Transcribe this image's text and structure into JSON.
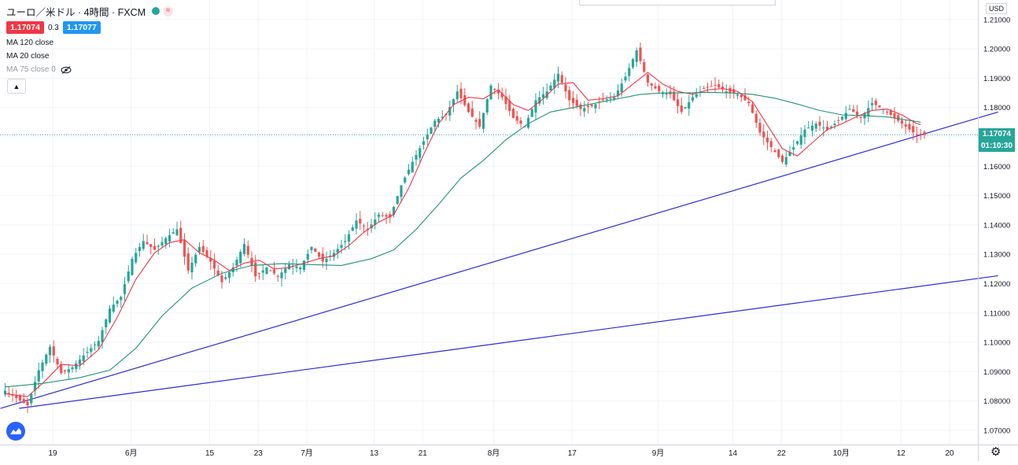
{
  "legend": {
    "title": "ユーロ／米ドル · 4時間 · FXCM",
    "bid": "1.17074",
    "spread": "0.3",
    "ask": "1.17077",
    "ma_lines": [
      "MA 120 close",
      "MA 20 close",
      "MA 75 close 0"
    ]
  },
  "price_scale": {
    "currency": "USD",
    "last_price": "1.17074",
    "countdown": "01:10:30"
  },
  "colors": {
    "bull": "#26a69a",
    "bear": "#ef5350",
    "ma_short": "#f23645",
    "ma_long": "#22927a",
    "trendline": "#2b2bd9",
    "bid_box": "#f23645",
    "ask_box": "#2196f3",
    "countdown_box": "#26a69a"
  },
  "icons": {
    "logo": "tradingview-logo-icon",
    "settings": "gear-icon",
    "hide": "eye-crossed-icon"
  },
  "chart_data": {
    "type": "candlestick",
    "title": "ユーロ／米ドル · 4時間 · FXCM",
    "ylim": [
      1.065,
      1.212
    ],
    "y_ticks": [
      1.07,
      1.08,
      1.09,
      1.1,
      1.11,
      1.12,
      1.13,
      1.14,
      1.15,
      1.16,
      1.17,
      1.18,
      1.19,
      1.2,
      1.21
    ],
    "y_tick_labels": [
      "1.07000",
      "1.08000",
      "1.09000",
      "1.10000",
      "1.11000",
      "1.12000",
      "1.13000",
      "1.14000",
      "1.15000",
      "1.16000",
      "1.17000",
      "1.18000",
      "1.19000",
      "1.20000",
      "1.21000"
    ],
    "x_ticks": [
      {
        "i": 6,
        "label": "19"
      },
      {
        "i": 27,
        "label": "6月"
      },
      {
        "i": 48,
        "label": "15"
      },
      {
        "i": 61,
        "label": "23"
      },
      {
        "i": 74,
        "label": "7月"
      },
      {
        "i": 92,
        "label": "13"
      },
      {
        "i": 105,
        "label": "21"
      },
      {
        "i": 124,
        "label": "8月"
      },
      {
        "i": 145,
        "label": "17"
      },
      {
        "i": 168,
        "label": "9月"
      },
      {
        "i": 188,
        "label": "14"
      },
      {
        "i": 201,
        "label": "22"
      },
      {
        "i": 217,
        "label": "10月"
      },
      {
        "i": 233,
        "label": "12"
      },
      {
        "i": 246,
        "label": "20"
      }
    ],
    "close_path": [
      [
        0,
        1.0835
      ],
      [
        6,
        1.0785
      ],
      [
        9,
        1.0905
      ],
      [
        12,
        1.0985
      ],
      [
        15,
        1.0895
      ],
      [
        18,
        1.0915
      ],
      [
        21,
        1.0955
      ],
      [
        25,
        1.1005
      ],
      [
        28,
        1.1115
      ],
      [
        31,
        1.1155
      ],
      [
        34,
        1.1285
      ],
      [
        37,
        1.1345
      ],
      [
        40,
        1.1315
      ],
      [
        43,
        1.1355
      ],
      [
        46,
        1.1385
      ],
      [
        49,
        1.1245
      ],
      [
        52,
        1.1325
      ],
      [
        55,
        1.1275
      ],
      [
        58,
        1.1205
      ],
      [
        61,
        1.1255
      ],
      [
        64,
        1.1335
      ],
      [
        67,
        1.1225
      ],
      [
        70,
        1.1255
      ],
      [
        73,
        1.1225
      ],
      [
        76,
        1.1265
      ],
      [
        79,
        1.1255
      ],
      [
        82,
        1.1325
      ],
      [
        85,
        1.1275
      ],
      [
        88,
        1.1305
      ],
      [
        91,
        1.1345
      ],
      [
        94,
        1.1415
      ],
      [
        97,
        1.1385
      ],
      [
        100,
        1.1435
      ],
      [
        103,
        1.1425
      ],
      [
        106,
        1.1535
      ],
      [
        109,
        1.1615
      ],
      [
        112,
        1.1685
      ],
      [
        115,
        1.1755
      ],
      [
        118,
        1.1775
      ],
      [
        121,
        1.1855
      ],
      [
        124,
        1.1785
      ],
      [
        127,
        1.1735
      ],
      [
        130,
        1.1875
      ],
      [
        133,
        1.1835
      ],
      [
        136,
        1.1765
      ],
      [
        139,
        1.1735
      ],
      [
        142,
        1.1825
      ],
      [
        145,
        1.1855
      ],
      [
        148,
        1.1915
      ],
      [
        151,
        1.1825
      ],
      [
        154,
        1.1795
      ],
      [
        157,
        1.1805
      ],
      [
        160,
        1.1825
      ],
      [
        163,
        1.1835
      ],
      [
        166,
        1.1905
      ],
      [
        169,
        1.1995
      ],
      [
        172,
        1.1885
      ],
      [
        175,
        1.1855
      ],
      [
        178,
        1.1845
      ],
      [
        181,
        1.1785
      ],
      [
        184,
        1.1835
      ],
      [
        187,
        1.1865
      ],
      [
        190,
        1.1875
      ],
      [
        193,
        1.1855
      ],
      [
        196,
        1.1845
      ],
      [
        199,
        1.1815
      ],
      [
        202,
        1.1715
      ],
      [
        205,
        1.1665
      ],
      [
        208,
        1.1615
      ],
      [
        211,
        1.1665
      ],
      [
        214,
        1.1725
      ],
      [
        217,
        1.1745
      ],
      [
        220,
        1.1725
      ],
      [
        223,
        1.1755
      ],
      [
        226,
        1.1795
      ],
      [
        229,
        1.1765
      ],
      [
        232,
        1.1815
      ],
      [
        235,
        1.1795
      ],
      [
        238,
        1.1765
      ],
      [
        241,
        1.1735
      ],
      [
        244,
        1.1705
      ],
      [
        245,
        1.17074
      ]
    ],
    "series": [
      {
        "name": "MA 20 close",
        "color": "#f23645",
        "points": [
          [
            0,
            1.0825
          ],
          [
            6,
            1.0815
          ],
          [
            10,
            1.086
          ],
          [
            15,
            1.0925
          ],
          [
            20,
            1.092
          ],
          [
            25,
            1.0975
          ],
          [
            30,
            1.1085
          ],
          [
            35,
            1.1215
          ],
          [
            40,
            1.1305
          ],
          [
            44,
            1.134
          ],
          [
            48,
            1.135
          ],
          [
            52,
            1.1305
          ],
          [
            56,
            1.128
          ],
          [
            60,
            1.1245
          ],
          [
            64,
            1.127
          ],
          [
            68,
            1.128
          ],
          [
            72,
            1.125
          ],
          [
            76,
            1.1255
          ],
          [
            80,
            1.127
          ],
          [
            84,
            1.1285
          ],
          [
            88,
            1.1295
          ],
          [
            92,
            1.133
          ],
          [
            96,
            1.1375
          ],
          [
            100,
            1.141
          ],
          [
            104,
            1.1435
          ],
          [
            108,
            1.1525
          ],
          [
            112,
            1.164
          ],
          [
            116,
            1.1745
          ],
          [
            120,
            1.181
          ],
          [
            124,
            1.1835
          ],
          [
            128,
            1.183
          ],
          [
            132,
            1.186
          ],
          [
            136,
            1.181
          ],
          [
            140,
            1.179
          ],
          [
            144,
            1.183
          ],
          [
            148,
            1.188
          ],
          [
            152,
            1.1885
          ],
          [
            156,
            1.1825
          ],
          [
            160,
            1.183
          ],
          [
            164,
            1.184
          ],
          [
            168,
            1.188
          ],
          [
            172,
            1.192
          ],
          [
            176,
            1.188
          ],
          [
            180,
            1.1855
          ],
          [
            184,
            1.1845
          ],
          [
            188,
            1.186
          ],
          [
            192,
            1.1865
          ],
          [
            196,
            1.1855
          ],
          [
            200,
            1.182
          ],
          [
            204,
            1.174
          ],
          [
            208,
            1.166
          ],
          [
            212,
            1.1635
          ],
          [
            216,
            1.168
          ],
          [
            220,
            1.1725
          ],
          [
            224,
            1.1745
          ],
          [
            228,
            1.177
          ],
          [
            232,
            1.179
          ],
          [
            236,
            1.1795
          ],
          [
            240,
            1.1775
          ],
          [
            244,
            1.1745
          ],
          [
            245,
            1.1742
          ]
        ]
      },
      {
        "name": "MA 120 close",
        "color": "#22927a",
        "points": [
          [
            0,
            1.0848
          ],
          [
            10,
            1.086
          ],
          [
            20,
            1.088
          ],
          [
            28,
            1.0905
          ],
          [
            35,
            1.098
          ],
          [
            42,
            1.109
          ],
          [
            50,
            1.1185
          ],
          [
            58,
            1.1235
          ],
          [
            66,
            1.1262
          ],
          [
            74,
            1.1268
          ],
          [
            82,
            1.1265
          ],
          [
            90,
            1.1262
          ],
          [
            98,
            1.1285
          ],
          [
            104,
            1.1315
          ],
          [
            110,
            1.1385
          ],
          [
            116,
            1.147
          ],
          [
            122,
            1.156
          ],
          [
            128,
            1.162
          ],
          [
            134,
            1.169
          ],
          [
            140,
            1.1745
          ],
          [
            146,
            1.1785
          ],
          [
            152,
            1.18
          ],
          [
            158,
            1.1815
          ],
          [
            164,
            1.183
          ],
          [
            170,
            1.1845
          ],
          [
            176,
            1.185
          ],
          [
            182,
            1.185
          ],
          [
            188,
            1.1852
          ],
          [
            194,
            1.185
          ],
          [
            200,
            1.1845
          ],
          [
            206,
            1.1832
          ],
          [
            212,
            1.1812
          ],
          [
            218,
            1.179
          ],
          [
            224,
            1.1775
          ],
          [
            230,
            1.1772
          ],
          [
            236,
            1.1768
          ],
          [
            240,
            1.176
          ],
          [
            244,
            1.1752
          ],
          [
            245,
            1.175
          ]
        ]
      }
    ],
    "trendlines": [
      {
        "from": [
          0,
          1.0775
        ],
        "to": [
          259,
          1.1785
        ]
      },
      {
        "from": [
          5,
          1.0775
        ],
        "to": [
          259,
          1.1227
        ]
      }
    ],
    "last_price": 1.17074,
    "bars": 247
  }
}
